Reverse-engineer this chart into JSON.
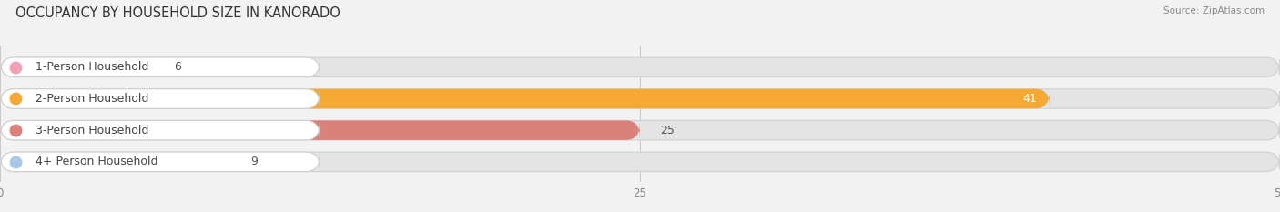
{
  "title": "OCCUPANCY BY HOUSEHOLD SIZE IN KANORADO",
  "source": "Source: ZipAtlas.com",
  "categories": [
    "1-Person Household",
    "2-Person Household",
    "3-Person Household",
    "4+ Person Household"
  ],
  "values": [
    6,
    41,
    25,
    9
  ],
  "bar_colors": [
    "#f4a0b5",
    "#f5a832",
    "#d9817a",
    "#a8c8e8"
  ],
  "dot_colors": [
    "#f4a0b5",
    "#f5a832",
    "#d9817a",
    "#a8c8e8"
  ],
  "xlim": [
    0,
    50
  ],
  "xticks": [
    0,
    25,
    50
  ],
  "background_color": "#f2f2f2",
  "bar_bg_color": "#e4e4e4",
  "title_fontsize": 10.5,
  "label_fontsize": 9,
  "value_fontsize": 9,
  "bar_height": 0.62
}
